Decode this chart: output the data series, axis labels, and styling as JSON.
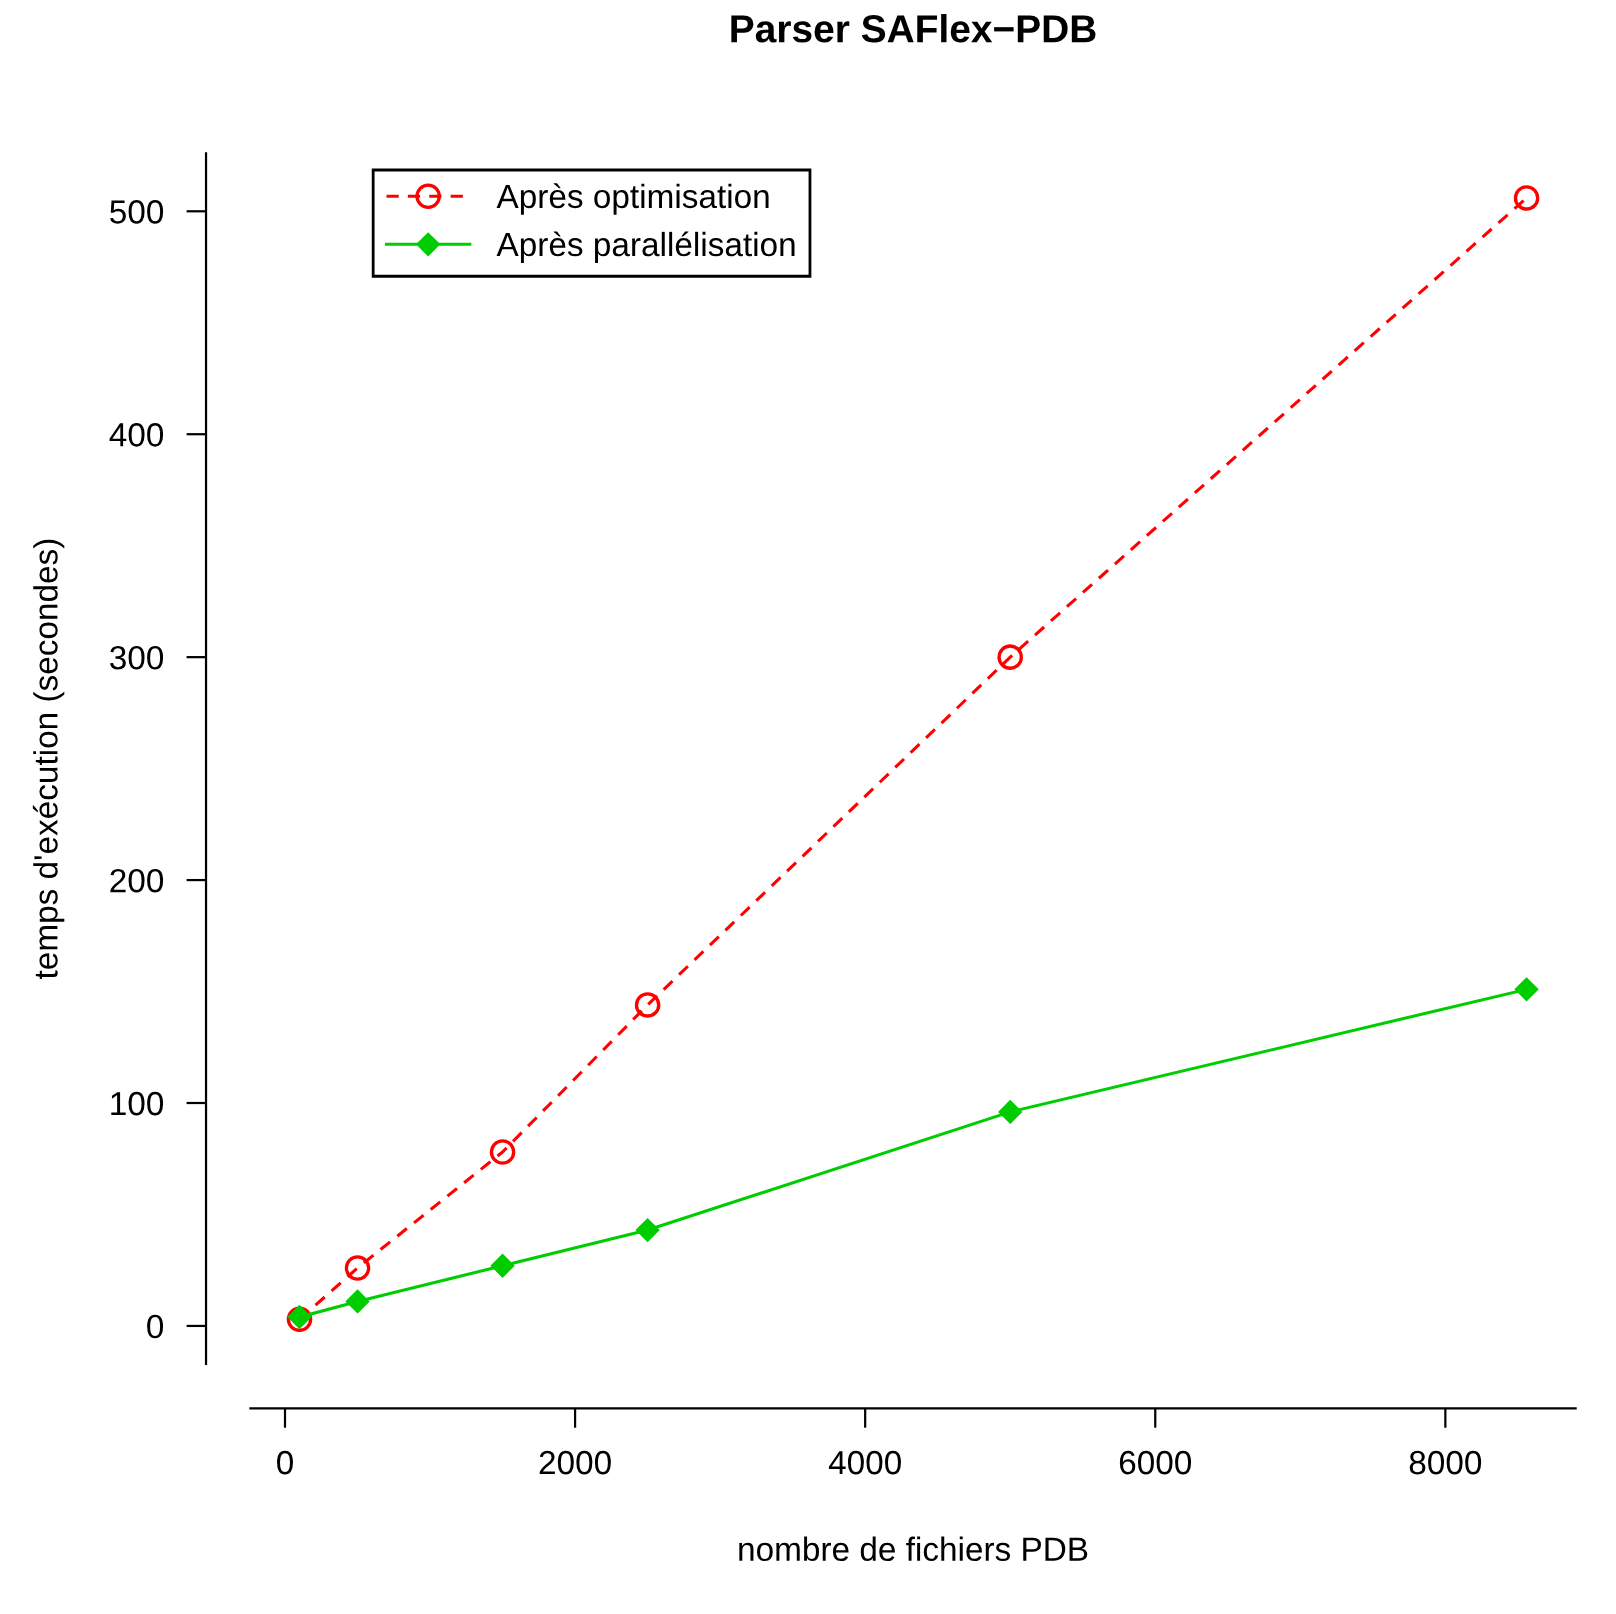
{
  "chart_data": {
    "type": "line",
    "title": "Parser SAFlex−PDB",
    "xlabel": "nombre de fichiers PDB",
    "ylabel": "temps d'exécution (secondes)",
    "x": [
      100,
      500,
      1500,
      2500,
      5000,
      8560
    ],
    "series": [
      {
        "name": "Après optimisation",
        "color": "#ff0000",
        "values": [
          3,
          26,
          78,
          144,
          300,
          506
        ],
        "marker": "circle",
        "line_style": "dashed"
      },
      {
        "name": "Après parallélisation",
        "color": "#00cd00",
        "values": [
          4,
          11,
          27,
          43,
          96,
          151
        ],
        "marker": "diamond",
        "line_style": "solid"
      }
    ],
    "xlim": [
      -238,
      8898
    ],
    "ylim": [
      -17,
      526
    ],
    "xticks": [
      0,
      2000,
      4000,
      6000,
      8000
    ],
    "yticks": [
      0,
      100,
      200,
      300,
      400,
      500
    ],
    "grid": false,
    "legend": "top left"
  }
}
